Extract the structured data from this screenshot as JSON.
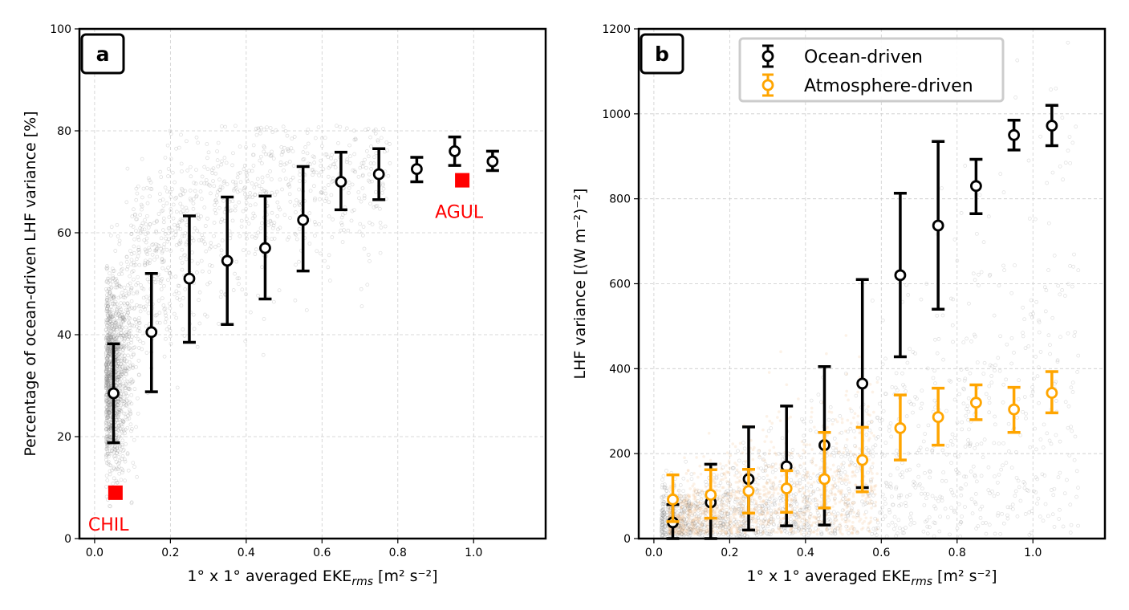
{
  "chart_data": [
    {
      "type": "scatter",
      "panel_label": "a",
      "title": "",
      "xlabel_main": "1° x 1° averaged  EKE",
      "xlabel_sub": "rms",
      "xlabel_unit": " [m² s⁻²]",
      "ylabel": "Percentage of ocean-driven LHF variance [%]",
      "xlim": [
        -0.04,
        1.19
      ],
      "ylim": [
        0,
        100
      ],
      "xticks": [
        "0.0",
        "0.2",
        "0.4",
        "0.6",
        "0.8",
        "1.0"
      ],
      "xtick_values": [
        0,
        0.2,
        0.4,
        0.6,
        0.8,
        1.0
      ],
      "yticks": [
        "0",
        "20",
        "40",
        "60",
        "80",
        "100"
      ],
      "ytick_values": [
        0,
        20,
        40,
        60,
        80,
        100
      ],
      "grid": true,
      "series": [
        {
          "name": "Ocean-driven",
          "color": "#000000",
          "x": [
            0.05,
            0.15,
            0.25,
            0.35,
            0.45,
            0.55,
            0.65,
            0.75,
            0.85,
            0.95,
            1.05
          ],
          "y": [
            28.5,
            40.5,
            51,
            54.5,
            57,
            62.5,
            70,
            71.5,
            72.5,
            76,
            74
          ],
          "yerr_low": [
            18.8,
            28.8,
            38.5,
            42.0,
            47.0,
            52.5,
            64.5,
            66.5,
            70.0,
            73.2,
            72.2
          ],
          "yerr_high": [
            38.2,
            52.0,
            63.3,
            67.0,
            67.2,
            73.0,
            75.8,
            76.5,
            74.8,
            78.8,
            76.0
          ]
        }
      ],
      "annotations": [
        {
          "text": "CHIL",
          "x": 0.055,
          "y": 9,
          "color": "#ff0000",
          "label_position": "below-left"
        },
        {
          "text": "AGUL",
          "x": 0.97,
          "y": 70.3,
          "color": "#ff0000",
          "label_position": "below-left"
        }
      ],
      "background_scatter": {
        "color": "#808080",
        "description": "grid-cell points"
      }
    },
    {
      "type": "scatter",
      "panel_label": "b",
      "title": "",
      "xlabel_main": "1° x 1° averaged  EKE",
      "xlabel_sub": "rms",
      "xlabel_unit": " [m² s⁻²]",
      "ylabel": "LHF variance [(W m⁻²)⁻²]",
      "xlim": [
        -0.04,
        1.19
      ],
      "ylim": [
        0,
        1200
      ],
      "xticks": [
        "0.0",
        "0.2",
        "0.4",
        "0.6",
        "0.8",
        "1.0"
      ],
      "xtick_values": [
        0,
        0.2,
        0.4,
        0.6,
        0.8,
        1.0
      ],
      "yticks": [
        "0",
        "200",
        "400",
        "600",
        "800",
        "1000",
        "1200"
      ],
      "ytick_values": [
        0,
        200,
        400,
        600,
        800,
        1000,
        1200
      ],
      "grid": true,
      "legend_position": "top-center",
      "series": [
        {
          "name": "Ocean-driven",
          "color": "#000000",
          "x": [
            0.05,
            0.15,
            0.25,
            0.35,
            0.45,
            0.55,
            0.65,
            0.75,
            0.85,
            0.95,
            1.05
          ],
          "y": [
            38,
            85,
            140,
            170,
            220,
            365,
            620,
            737,
            830,
            950,
            972
          ],
          "yerr_low": [
            0,
            0,
            20,
            30,
            32,
            120,
            428,
            540,
            765,
            915,
            925
          ],
          "yerr_high": [
            80,
            175,
            263,
            312,
            405,
            610,
            813,
            935,
            893,
            985,
            1020
          ]
        },
        {
          "name": "Atmosphere-driven",
          "color": "#ffa500",
          "x": [
            0.05,
            0.15,
            0.25,
            0.35,
            0.45,
            0.55,
            0.65,
            0.75,
            0.85,
            0.95,
            1.05
          ],
          "y": [
            92,
            103,
            112,
            118,
            140,
            185,
            260,
            286,
            320,
            304,
            343
          ],
          "yerr_low": [
            40,
            48,
            60,
            62,
            72,
            110,
            185,
            220,
            280,
            250,
            296
          ],
          "yerr_high": [
            150,
            162,
            163,
            160,
            250,
            262,
            338,
            354,
            362,
            356,
            393
          ]
        }
      ],
      "background_scatter": {
        "colors": [
          "#808080",
          "#f5d9b3"
        ],
        "description": "grid-cell points"
      }
    }
  ]
}
